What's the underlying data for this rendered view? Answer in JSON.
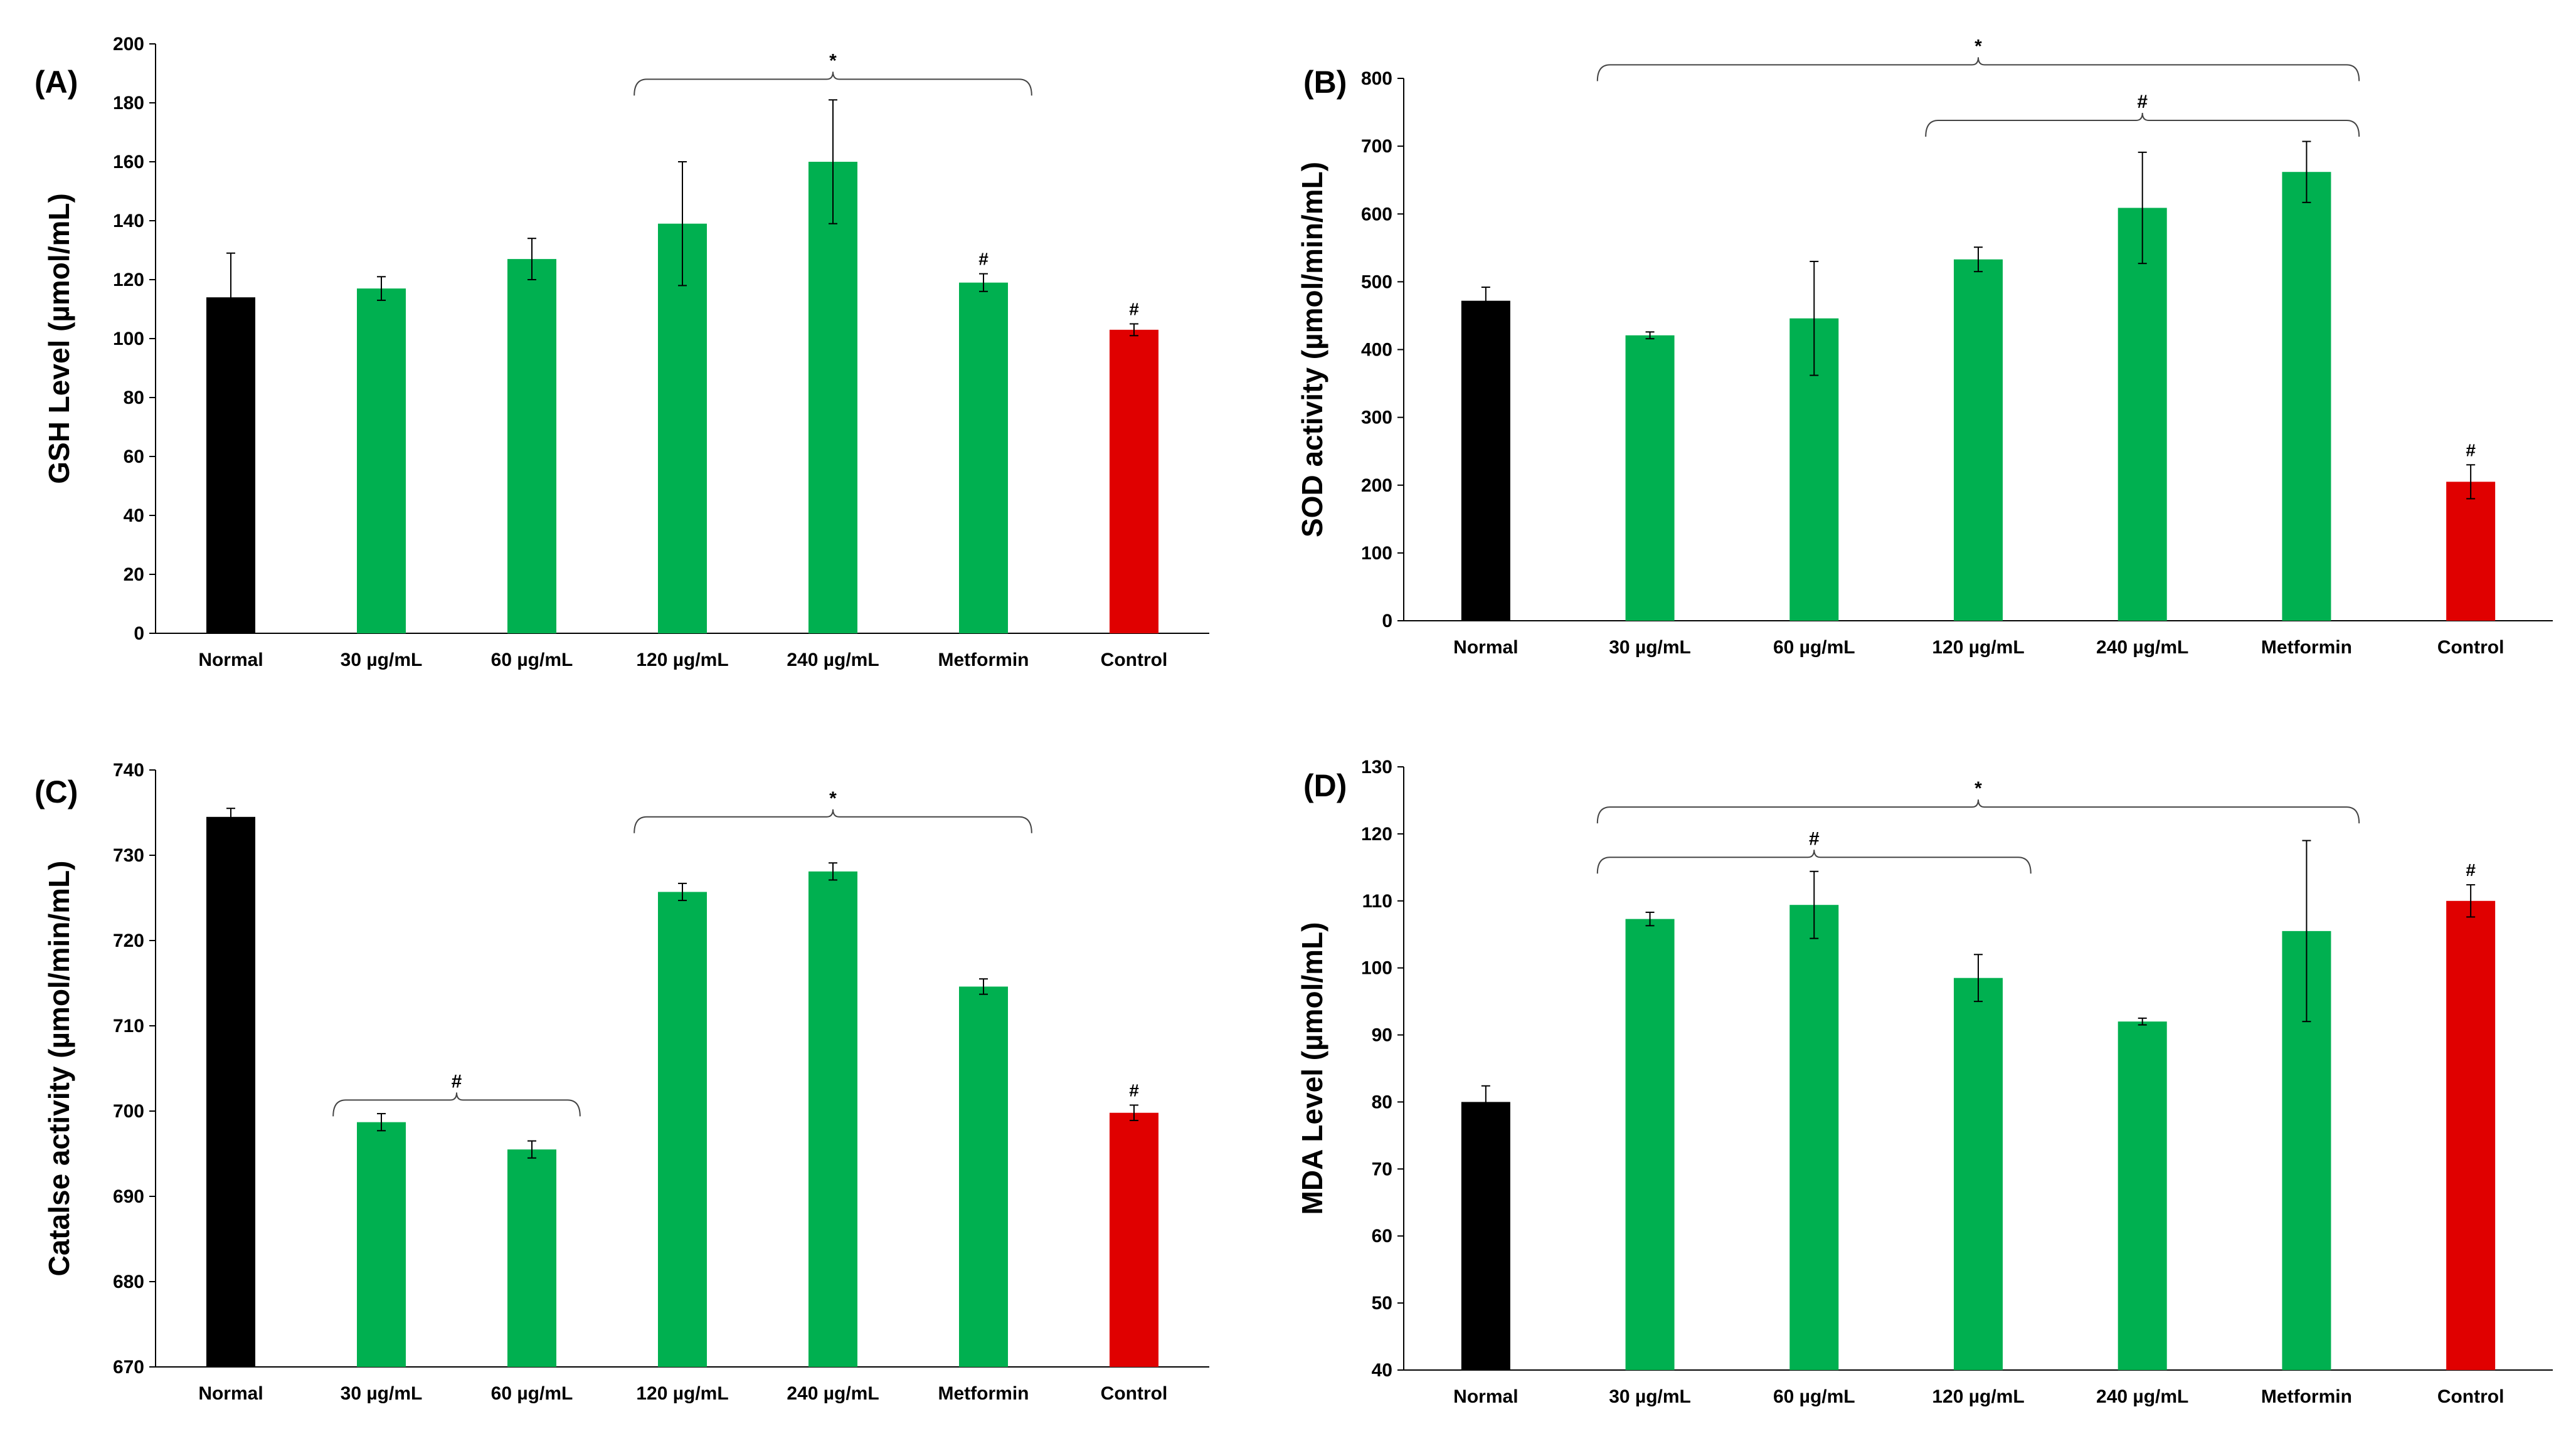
{
  "colors": {
    "normal": "#000000",
    "treatment": "#00b050",
    "control": "#e00000"
  },
  "chart_data": [
    {
      "id": "A",
      "type": "bar",
      "panel_label": "(A)",
      "ylabel": "GSH Level (µmol/mL)",
      "xlabel": "",
      "ylim": [
        0,
        200
      ],
      "yticks": [
        0,
        20,
        40,
        60,
        80,
        100,
        120,
        140,
        160,
        180,
        200
      ],
      "categories": [
        "Normal",
        "30 µg/mL",
        "60 µg/mL",
        "120 µg/mL",
        "240 µg/mL",
        "Metformin",
        "Control"
      ],
      "bar_colors": [
        "normal",
        "treatment",
        "treatment",
        "treatment",
        "treatment",
        "treatment",
        "control"
      ],
      "values": [
        114,
        117,
        127,
        139,
        160,
        119,
        103
      ],
      "errors": [
        15,
        4,
        7,
        21,
        21,
        3,
        2
      ],
      "bar_labels": [
        "",
        "",
        "",
        "",
        "",
        "#",
        "#"
      ],
      "brackets": [
        {
          "from": 3,
          "to": 5,
          "label": "*",
          "level": 188
        }
      ]
    },
    {
      "id": "B",
      "type": "bar",
      "panel_label": "(B)",
      "ylabel": "SOD activity (µmol/min/mL)",
      "xlabel": "",
      "ylim": [
        0,
        800
      ],
      "yticks": [
        0,
        100,
        200,
        300,
        400,
        500,
        600,
        700,
        800
      ],
      "categories": [
        "Normal",
        "30 µg/mL",
        "60 µg/mL",
        "120 µg/mL",
        "240 µg/mL",
        "Metformin",
        "Control"
      ],
      "bar_colors": [
        "normal",
        "treatment",
        "treatment",
        "treatment",
        "treatment",
        "treatment",
        "control"
      ],
      "values": [
        472,
        421,
        446,
        533,
        609,
        662,
        205
      ],
      "errors": [
        20,
        5,
        84,
        18,
        82,
        45,
        25
      ],
      "bar_labels": [
        "",
        "",
        "",
        "",
        "",
        "",
        "#"
      ],
      "brackets": [
        {
          "from": 1,
          "to": 5,
          "label": "*",
          "level": 820
        },
        {
          "from": 3,
          "to": 5,
          "label": "#",
          "level": 738
        }
      ]
    },
    {
      "id": "C",
      "type": "bar",
      "panel_label": "(C)",
      "ylabel": "Catalse activity (µmol/min/mL)",
      "xlabel": "",
      "ylim": [
        670,
        740
      ],
      "yticks": [
        670,
        680,
        690,
        700,
        710,
        720,
        730,
        740
      ],
      "categories": [
        "Normal",
        "30 µg/mL",
        "60 µg/mL",
        "120 µg/mL",
        "240 µg/mL",
        "Metformin",
        "Control"
      ],
      "bar_colors": [
        "normal",
        "treatment",
        "treatment",
        "treatment",
        "treatment",
        "treatment",
        "control"
      ],
      "values": [
        734.5,
        698.7,
        695.5,
        725.7,
        728.1,
        714.6,
        699.8
      ],
      "errors": [
        1.0,
        1.0,
        1.0,
        1.0,
        1.0,
        0.9,
        0.9
      ],
      "bar_labels": [
        "",
        "",
        "",
        "",
        "",
        "",
        "#"
      ],
      "brackets": [
        {
          "from": 3,
          "to": 5,
          "label": "*",
          "level": 734.5
        },
        {
          "from": 1,
          "to": 2,
          "label": "#",
          "level": 701.3
        }
      ]
    },
    {
      "id": "D",
      "type": "bar",
      "panel_label": "(D)",
      "ylabel": "MDA Level (µmol/mL)",
      "xlabel": "",
      "ylim": [
        40,
        130
      ],
      "yticks": [
        40,
        50,
        60,
        70,
        80,
        90,
        100,
        110,
        120,
        130
      ],
      "categories": [
        "Normal",
        "30 µg/mL",
        "60 µg/mL",
        "120 µg/mL",
        "240 µg/mL",
        "Metformin",
        "Control"
      ],
      "bar_colors": [
        "normal",
        "treatment",
        "treatment",
        "treatment",
        "treatment",
        "treatment",
        "control"
      ],
      "values": [
        80,
        107.3,
        109.4,
        98.5,
        92.0,
        105.5,
        110.0
      ],
      "errors": [
        2.4,
        1.0,
        5.0,
        3.5,
        0.5,
        13.5,
        2.4
      ],
      "bar_labels": [
        "",
        "",
        "",
        "",
        "",
        "",
        "#"
      ],
      "brackets": [
        {
          "from": 1,
          "to": 5,
          "label": "*",
          "level": 124
        },
        {
          "from": 1,
          "to": 3,
          "label": "#",
          "level": 116.5
        }
      ]
    }
  ]
}
